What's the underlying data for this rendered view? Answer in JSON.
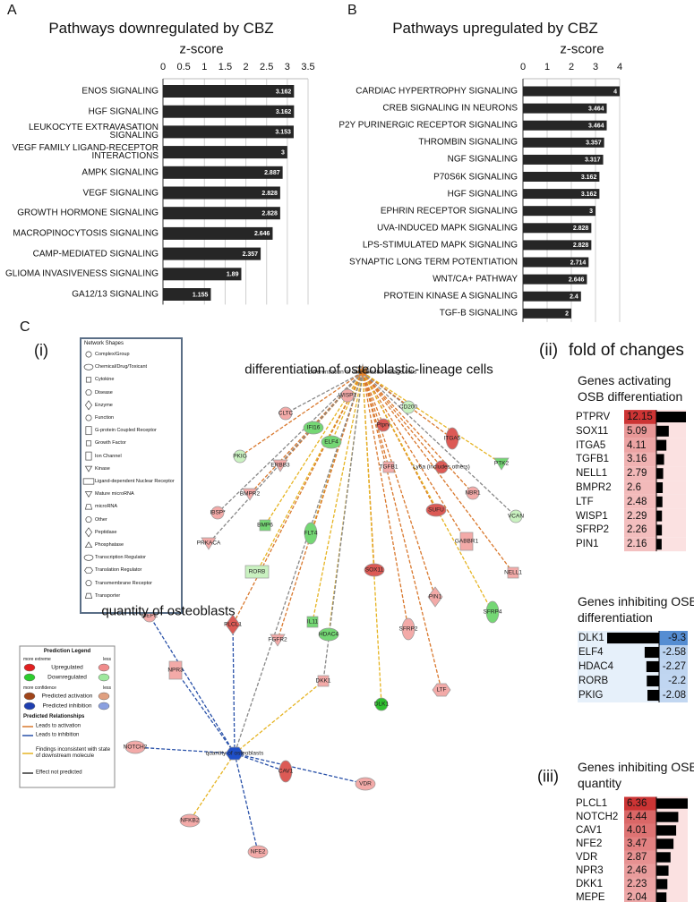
{
  "chart_data": [
    {
      "type": "bar",
      "orientation": "horizontal",
      "panel": "A",
      "title": "Pathways downregulated by CBZ",
      "x_label": "z-score",
      "categories": [
        "ENOS SIGNALING",
        "HGF SIGNALING",
        "LEUKOCYTE EXTRAVASATION SIGNALING",
        "VEGF FAMILY LIGAND-RECEPTOR INTERACTIONS",
        "AMPK SIGNALING",
        "VEGF SIGNALING",
        "GROWTH HORMONE SIGNALING",
        "MACROPINOCYTOSIS SIGNALING",
        "CAMP-MEDIATED SIGNALING",
        "GLIOMA INVASIVENESS SIGNALING",
        "GA12/13 SIGNALING"
      ],
      "values": [
        3.162,
        3.162,
        3.153,
        3,
        2.887,
        2.828,
        2.828,
        2.646,
        2.357,
        1.89,
        1.155
      ],
      "color": "#262626",
      "xlim": [
        0,
        3.5
      ],
      "xticks": [
        0,
        0.5,
        1,
        1.5,
        2,
        2.5,
        3,
        3.5
      ],
      "grid": true
    },
    {
      "type": "bar",
      "orientation": "horizontal",
      "panel": "B",
      "title": "Pathways upregulated by CBZ",
      "x_label": "z-score",
      "categories": [
        "CARDIAC HYPERTROPHY SIGNALING",
        "CREB SIGNALING IN NEURONS",
        "P2Y PURINERGIC RECEPTOR SIGNALING",
        "THROMBIN SIGNALING",
        "NGF SIGNALING",
        "P70S6K SIGNALING",
        "HGF SIGNALING",
        "EPHRIN RECEPTOR SIGNALING",
        "UVA-INDUCED MAPK SIGNALING",
        "LPS-STIMULATED MAPK SIGNALING",
        "SYNAPTIC LONG TERM POTENTIATION",
        "WNT/CA+ PATHWAY",
        "PROTEIN KINASE A SIGNALING",
        "TGF-B SIGNALING"
      ],
      "values": [
        4,
        3.464,
        3.464,
        3.357,
        3.317,
        3.162,
        3.162,
        3,
        2.828,
        2.828,
        2.714,
        2.646,
        2.4,
        2
      ],
      "color": "#262626",
      "xlim": [
        0,
        4
      ],
      "xticks": [
        0,
        1,
        2,
        3,
        4
      ],
      "grid": true
    }
  ],
  "panel_c": {
    "label": "C",
    "network": {
      "label": "(i)",
      "titles": [
        "differentiation of osteoblastic-lineage cells",
        "quantity of osteoblasts"
      ],
      "nodes": [
        "differentiation of osteoblastic-lineage cells",
        "quantity of osteoblasts",
        "WISP1",
        "CLTC",
        "CD200",
        "IFI16",
        "ELF4",
        "ITGA5",
        "Ptprv",
        "PKIG",
        "ERBB3",
        "TGFB1",
        "Ly6a (includes others)",
        "PTK2",
        "BMPR2",
        "IBSP*",
        "NBR1",
        "SUFU",
        "VCAN",
        "BMP6",
        "FLT4",
        "PRKACA",
        "GABBR1",
        "RORB",
        "SOX11",
        "NELL1",
        "PIN1",
        "MEPE",
        "PLCL1",
        "SFRP4",
        "IL11",
        "HDAC4",
        "FGFR2",
        "SFRP2",
        "NPR3",
        "DKK1",
        "LTF",
        "DLK1",
        "NOTCH2",
        "CAV1",
        "VDR",
        "NFKB2",
        "NFE2"
      ],
      "shapes_legend": {
        "title": "Network Shapes",
        "items": [
          "Complex/Group",
          "Chemical/Drug/Toxicant",
          "Cytokine",
          "Disease",
          "Enzyme",
          "Function",
          "G-protein Coupled Receptor",
          "Growth Factor",
          "Ion Channel",
          "Kinase",
          "Ligand-dependent Nuclear Receptor",
          "Mature microRNA",
          "microRNA",
          "Other",
          "Peptidase",
          "Phosphatase",
          "Transcription Regulator",
          "Translation Regulator",
          "Transmembrane Receptor",
          "Transporter"
        ]
      },
      "prediction_legend": {
        "title": "Prediction Legend",
        "groups": [
          {
            "left": "more extreme",
            "right": "less",
            "items": [
              "Upregulated",
              "Downregulated"
            ]
          },
          {
            "left": "more confidence",
            "right": "less",
            "items": [
              "Predicted activation",
              "Predicted inhibition"
            ]
          }
        ],
        "relationships": {
          "title": "Predicted Relationships",
          "items": [
            "Leads to activation",
            "Leads to inhibition",
            "Findings inconsistent with state of downstream molecule",
            "Effect not predicted"
          ]
        }
      }
    },
    "fold_changes": {
      "label": "(ii)",
      "title": "fold of changes",
      "tables": [
        {
          "title": "Genes activating OSB differentiation",
          "genes": [
            "PTPRV",
            "SOX11",
            "ITGA5",
            "TGFB1",
            "NELL1",
            "BMPR2",
            "LTF",
            "WISP1",
            "SFRP2",
            "PIN1"
          ],
          "values": [
            12.15,
            5.09,
            4.11,
            3.16,
            2.79,
            2.6,
            2.48,
            2.29,
            2.26,
            2.16
          ]
        },
        {
          "title": "Genes inhibiting OSB differentiation",
          "genes": [
            "DLK1",
            "ELF4",
            "HDAC4",
            "RORB",
            "PKIG"
          ],
          "values": [
            -9.3,
            -2.58,
            -2.27,
            -2.2,
            -2.08
          ]
        },
        {
          "label": "(iii)",
          "title": "Genes inhibiting OSB quantity",
          "genes": [
            "PLCL1",
            "NOTCH2",
            "CAV1",
            "NFE2",
            "VDR",
            "NPR3",
            "DKK1",
            "MEPE"
          ],
          "values": [
            6.36,
            4.44,
            4.01,
            3.47,
            2.87,
            2.46,
            2.23,
            2.04
          ]
        }
      ]
    }
  }
}
